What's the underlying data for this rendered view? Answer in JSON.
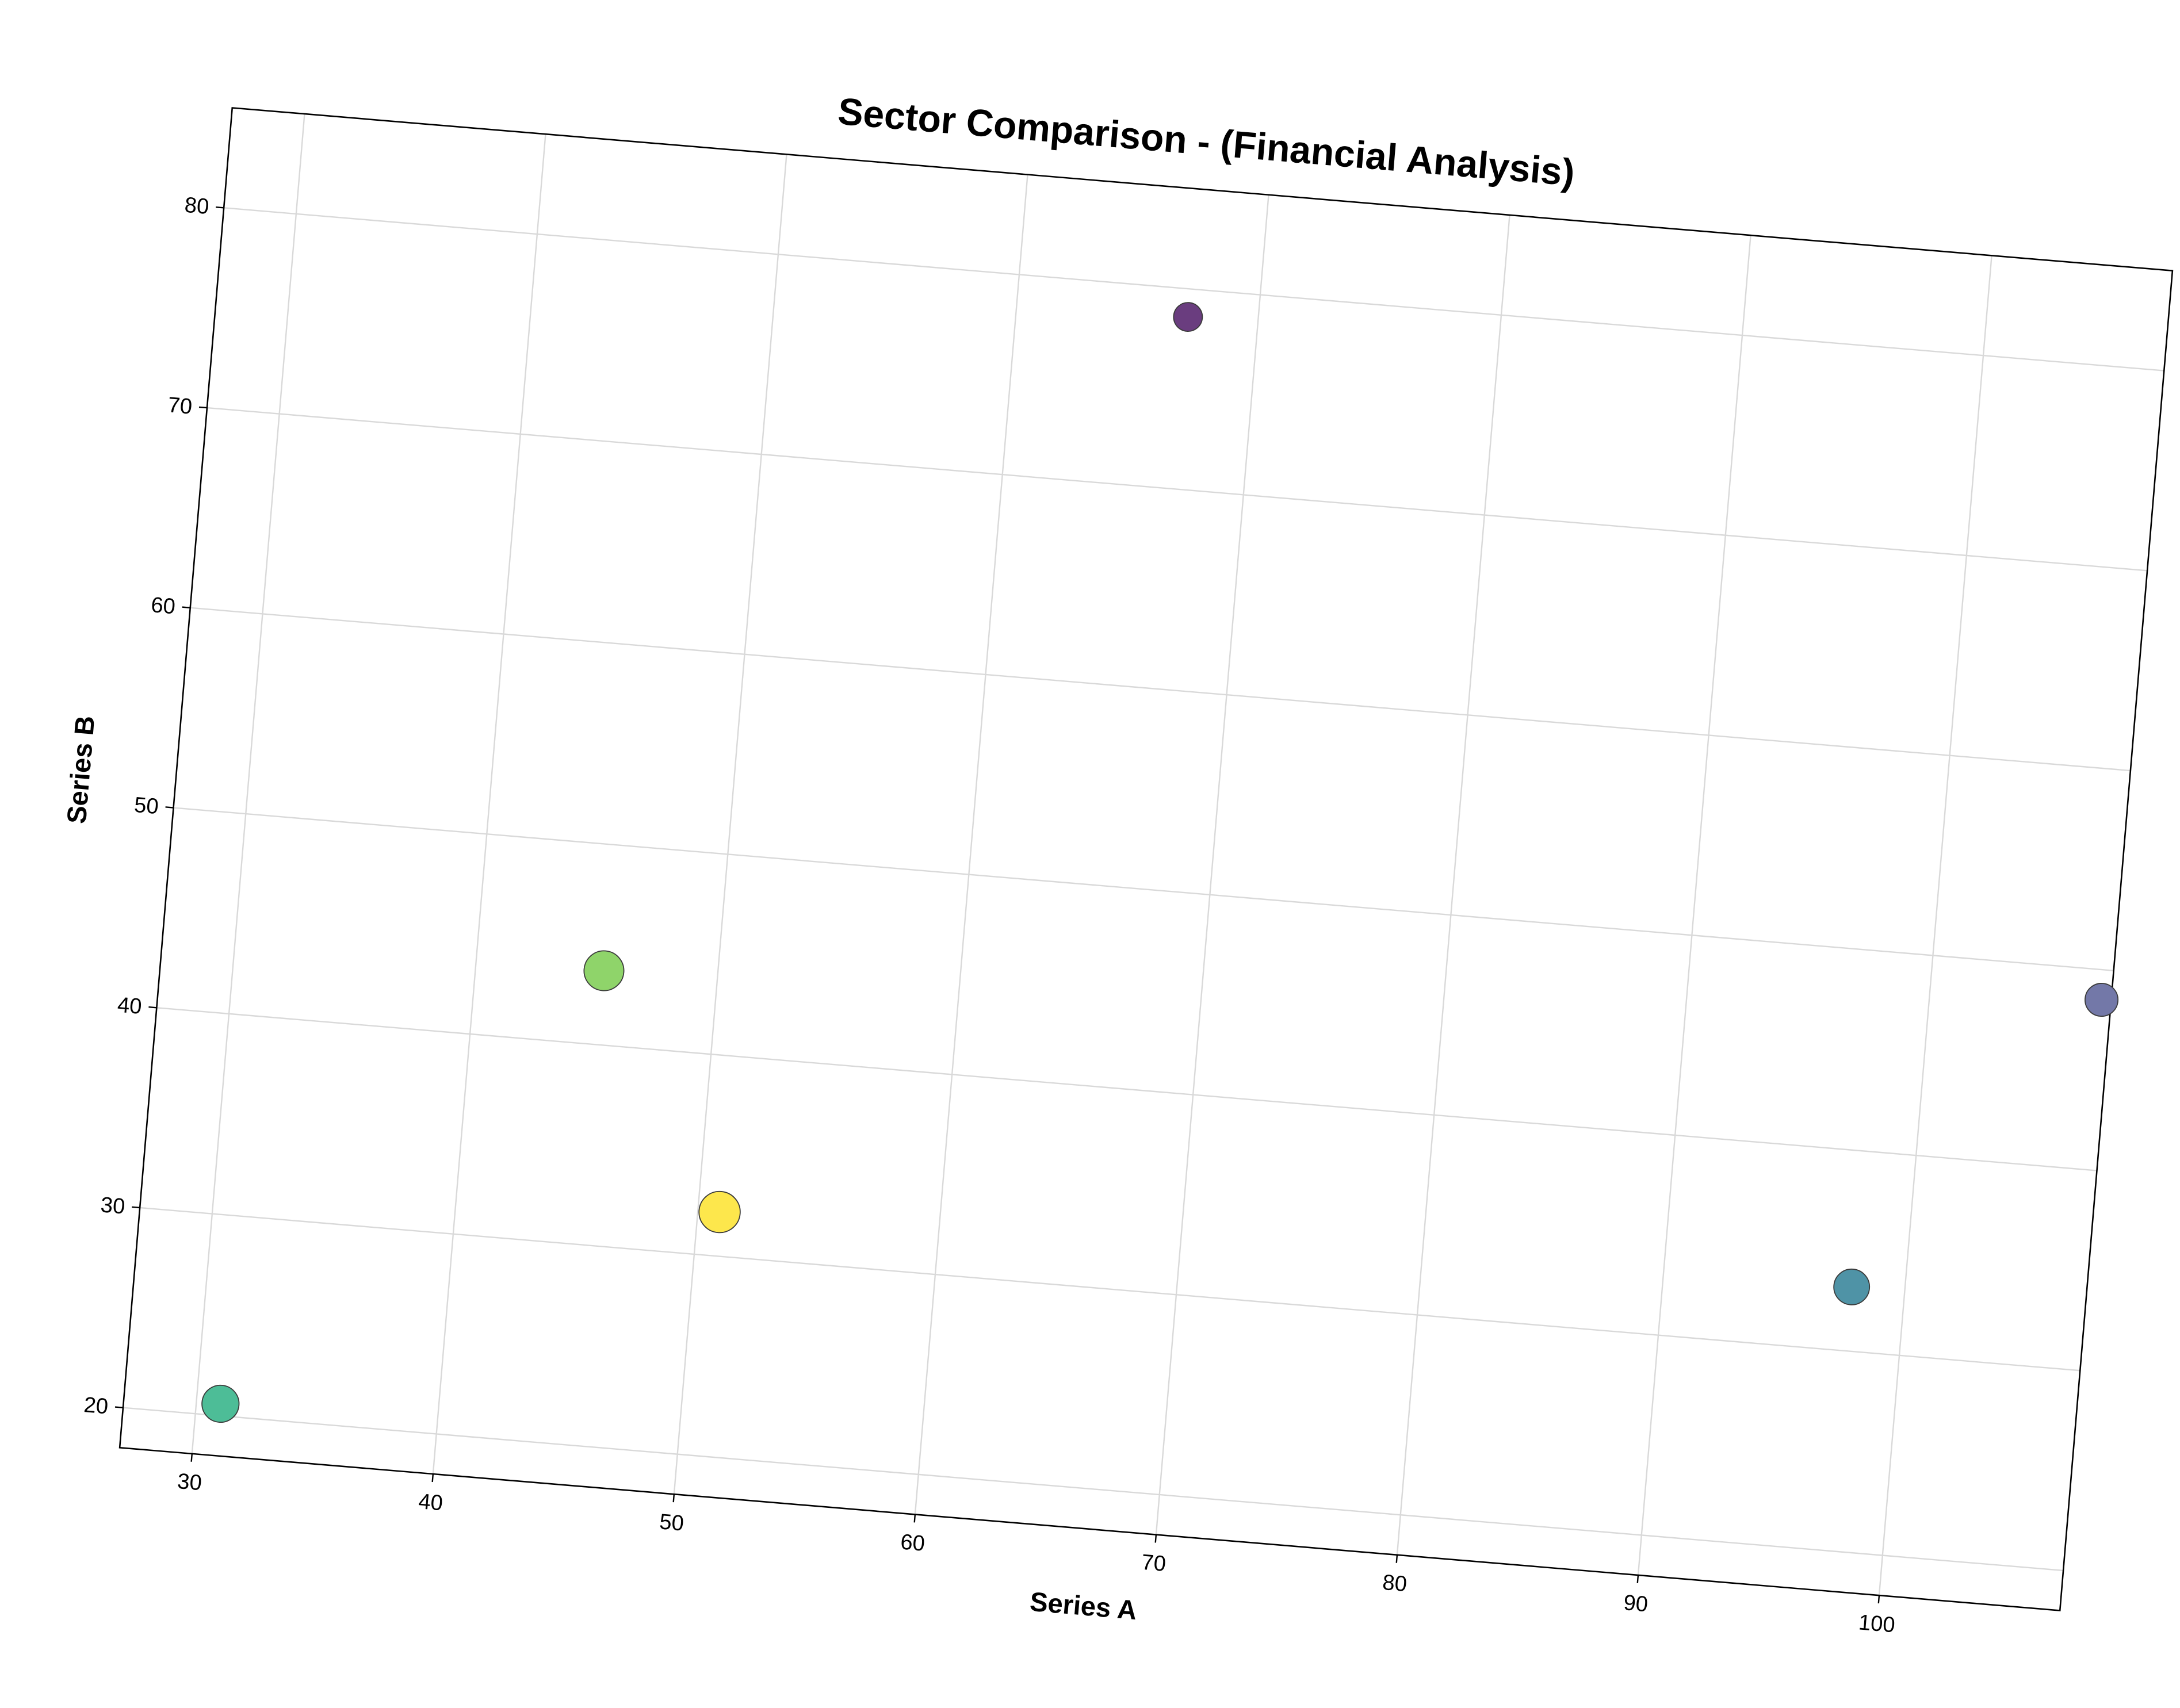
{
  "chart_data": {
    "type": "scatter",
    "title": "Sector Comparison - (Financial Analysis)",
    "xlabel": "Series A",
    "ylabel": "Series B",
    "xlim": [
      27,
      107.5
    ],
    "ylim": [
      18,
      85
    ],
    "x_ticks": [
      30,
      40,
      50,
      60,
      70,
      80,
      90,
      100
    ],
    "y_ticks": [
      20,
      30,
      40,
      50,
      60,
      70,
      80
    ],
    "grid": true,
    "legend": "none",
    "rotation_deg": 4.8,
    "points": [
      {
        "x": 67.1,
        "y": 78.6,
        "size": 1.0,
        "color": "#6a3d7f"
      },
      {
        "x": 107.1,
        "y": 48.5,
        "size": 1.3,
        "color": "#7378a8"
      },
      {
        "x": 97.8,
        "y": 33.2,
        "size": 1.5,
        "color": "#4f93a6"
      },
      {
        "x": 45.3,
        "y": 43.7,
        "size": 1.8,
        "color": "#8fd46a"
      },
      {
        "x": 50.9,
        "y": 32.2,
        "size": 1.9,
        "color": "#fde74c"
      },
      {
        "x": 31.0,
        "y": 20.6,
        "size": 1.6,
        "color": "#4dbd97"
      }
    ]
  }
}
